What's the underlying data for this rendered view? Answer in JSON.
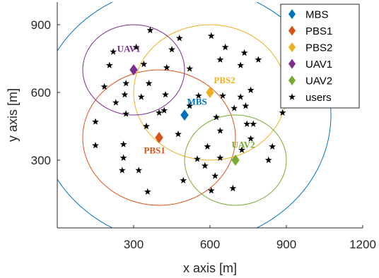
{
  "chart_data": {
    "type": "scatter",
    "xlabel": "x axis [m]",
    "ylabel": "y axis [m]",
    "xlim": [
      0,
      1200
    ],
    "ylim": [
      0,
      1000
    ],
    "x_ticks": [
      300,
      600,
      900,
      1200
    ],
    "y_ticks": [
      300,
      600,
      900
    ],
    "x_tick_labels": [
      "300",
      "600",
      "900",
      "1200"
    ],
    "y_tick_labels": [
      "300",
      "600",
      "900"
    ],
    "grid": false,
    "legend_position": "top-right",
    "series": [
      {
        "name": "MBS",
        "marker": "diamond",
        "color": "#0072BD",
        "points": [
          [
            500,
            500
          ]
        ]
      },
      {
        "name": "PBS1",
        "marker": "diamond",
        "color": "#D95319",
        "points": [
          [
            400,
            400
          ]
        ]
      },
      {
        "name": "PBS2",
        "marker": "diamond",
        "color": "#EDB120",
        "points": [
          [
            600,
            600
          ]
        ]
      },
      {
        "name": "UAV1",
        "marker": "diamond",
        "color": "#7E2F8E",
        "points": [
          [
            300,
            700
          ]
        ]
      },
      {
        "name": "UAV2",
        "marker": "diamond",
        "color": "#77AC30",
        "points": [
          [
            700,
            300
          ]
        ]
      },
      {
        "name": "users",
        "marker": "star",
        "color": "#000000",
        "points": [
          [
            365,
            875
          ],
          [
            480,
            840
          ],
          [
            605,
            850
          ],
          [
            220,
            780
          ],
          [
            310,
            800
          ],
          [
            450,
            790
          ],
          [
            660,
            800
          ],
          [
            735,
            775
          ],
          [
            205,
            720
          ],
          [
            340,
            725
          ],
          [
            430,
            710
          ],
          [
            520,
            705
          ],
          [
            640,
            745
          ],
          [
            720,
            720
          ],
          [
            790,
            745
          ],
          [
            185,
            625
          ],
          [
            270,
            640
          ],
          [
            265,
            590
          ],
          [
            360,
            640
          ],
          [
            425,
            590
          ],
          [
            760,
            610
          ],
          [
            555,
            585
          ],
          [
            650,
            585
          ],
          [
            720,
            580
          ],
          [
            230,
            555
          ],
          [
            330,
            580
          ],
          [
            520,
            540
          ],
          [
            695,
            530
          ],
          [
            740,
            540
          ],
          [
            885,
            510
          ],
          [
            270,
            505
          ],
          [
            400,
            510
          ],
          [
            420,
            520
          ],
          [
            625,
            490
          ],
          [
            745,
            460
          ],
          [
            150,
            470
          ],
          [
            350,
            450
          ],
          [
            475,
            415
          ],
          [
            640,
            430
          ],
          [
            770,
            460
          ],
          [
            845,
            360
          ],
          [
            260,
            370
          ],
          [
            150,
            365
          ],
          [
            590,
            360
          ],
          [
            760,
            395
          ],
          [
            260,
            310
          ],
          [
            640,
            310
          ],
          [
            725,
            345
          ],
          [
            830,
            300
          ],
          [
            255,
            255
          ],
          [
            320,
            255
          ],
          [
            580,
            275
          ],
          [
            495,
            210
          ],
          [
            620,
            230
          ],
          [
            605,
            165
          ],
          [
            690,
            175
          ],
          [
            550,
            305
          ],
          [
            355,
            160
          ]
        ]
      }
    ],
    "circles": [
      {
        "name": "MBS",
        "center": [
          500,
          500
        ],
        "radius": 575,
        "color": "#0072BD"
      },
      {
        "name": "PBS1",
        "center": [
          400,
          400
        ],
        "radius": 300,
        "color": "#D95319"
      },
      {
        "name": "PBS2",
        "center": [
          600,
          600
        ],
        "radius": 300,
        "color": "#EDB120"
      },
      {
        "name": "UAV1",
        "center": [
          300,
          700
        ],
        "radius": 200,
        "color": "#7E2F8E"
      },
      {
        "name": "UAV2",
        "center": [
          700,
          300
        ],
        "radius": 200,
        "color": "#77AC30"
      }
    ],
    "annotations": [
      {
        "text": "MBS",
        "x": 510,
        "y": 545,
        "color": "#0072BD"
      },
      {
        "text": "PBS1",
        "x": 340,
        "y": 330,
        "color": "#D95319"
      },
      {
        "text": "PBS2",
        "x": 615,
        "y": 640,
        "color": "#EDB120"
      },
      {
        "text": "UAV1",
        "x": 235,
        "y": 780,
        "color": "#7E2F8E"
      },
      {
        "text": "UAV2",
        "x": 685,
        "y": 355,
        "color": "#77AC30"
      }
    ]
  }
}
